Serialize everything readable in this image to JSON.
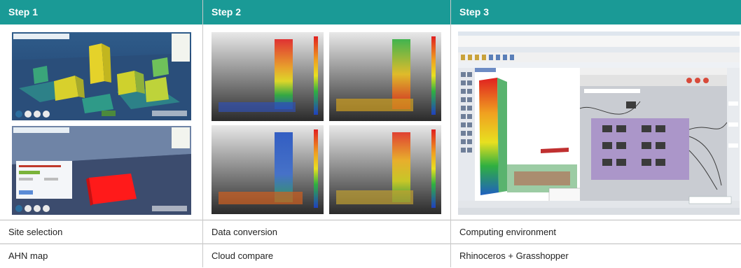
{
  "columns": [
    {
      "header": "Step 1",
      "label": "Site selection",
      "tool": "AHN map"
    },
    {
      "header": "Step 2",
      "label": "Data conversion",
      "tool": "Cloud compare"
    },
    {
      "header": "Step 3",
      "label": "Computing environment",
      "tool": "Rhinoceros + Grasshopper"
    }
  ],
  "colors": {
    "header_bg": "#1a9a96",
    "header_text": "#ffffff",
    "divider": "#bdbdbd"
  }
}
